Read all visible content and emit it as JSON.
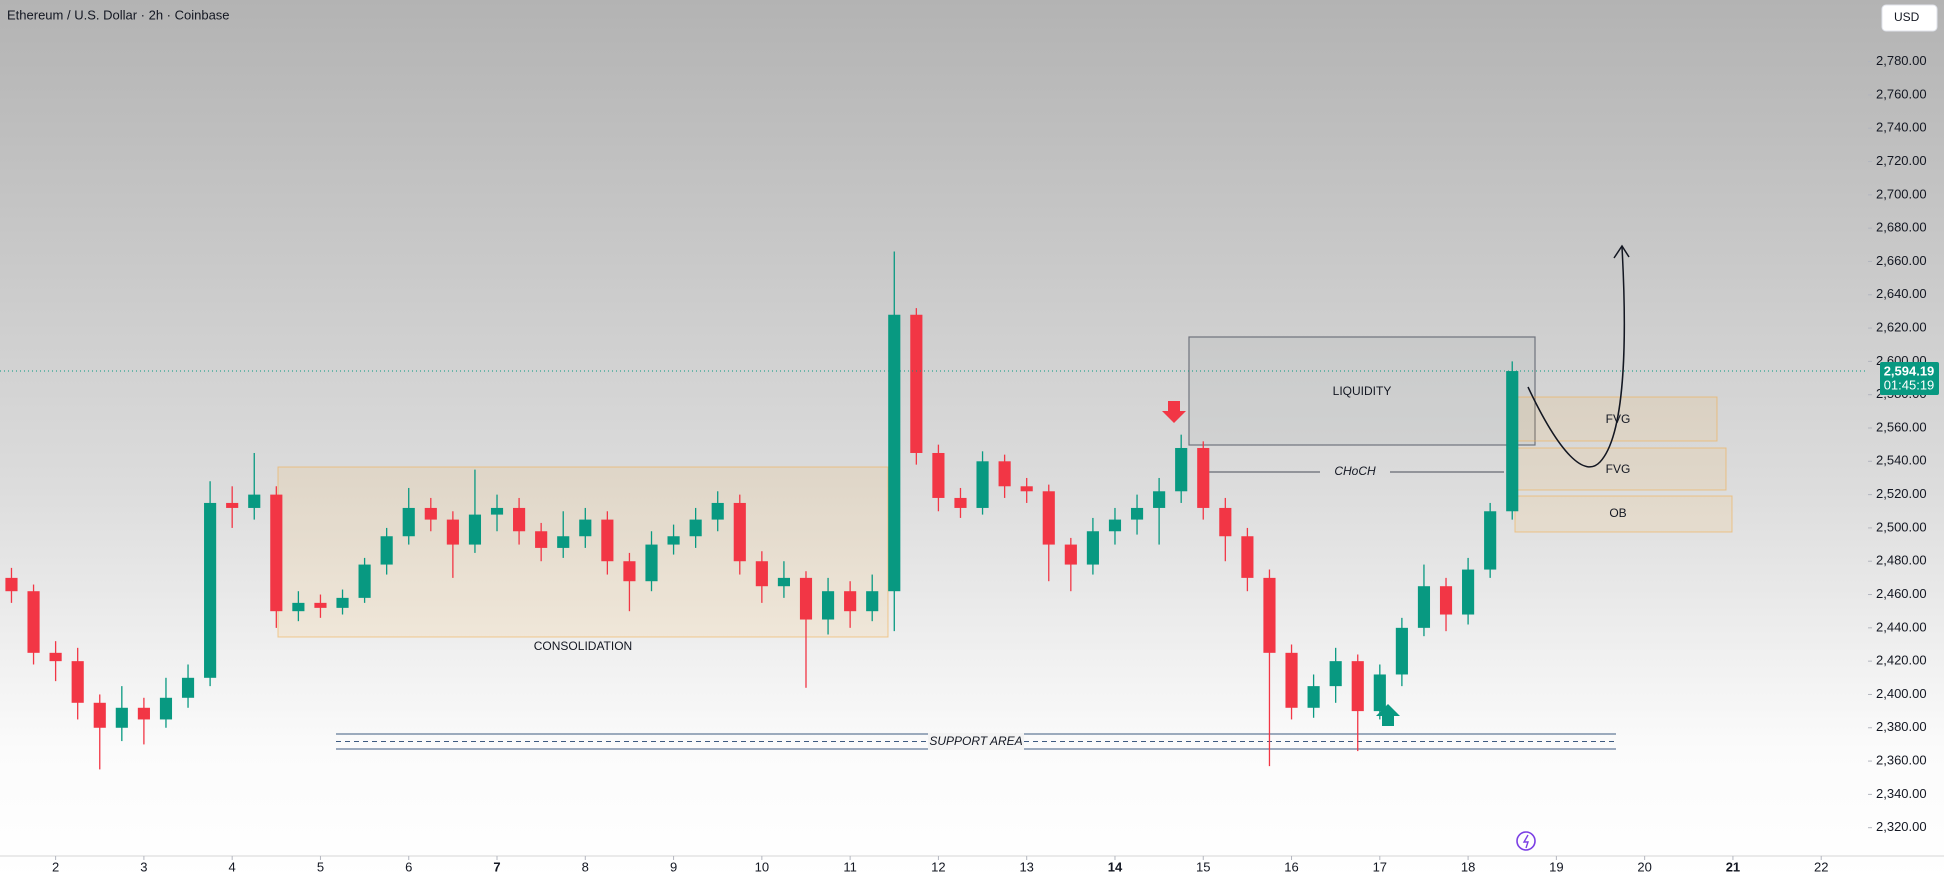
{
  "chart_data": {
    "type": "candlestick",
    "title": "Ethereum / U.S. Dollar · 2h · Coinbase",
    "currency_button": "USD",
    "up_color": "#089981",
    "down_color": "#f23645",
    "x": [
      1.5,
      1.75,
      2,
      2.25,
      2.5,
      2.75,
      3,
      3.25,
      3.5,
      3.75,
      4,
      4.25,
      4.5,
      4.75,
      5,
      5.25,
      5.5,
      5.75,
      6,
      6.25,
      6.5,
      6.75,
      7,
      7.25,
      7.5,
      7.75,
      8,
      8.25,
      8.5,
      8.75,
      9,
      9.25,
      9.5,
      9.75,
      10,
      10.25,
      10.5,
      10.75,
      11,
      11.25,
      11.5,
      11.75,
      12,
      12.25,
      12.5,
      12.75,
      13,
      13.25,
      13.5,
      13.75,
      14,
      14.25,
      14.5,
      14.75,
      15,
      15.25,
      15.5,
      15.75,
      16,
      16.25,
      16.5,
      16.75,
      17,
      17.25,
      17.5,
      17.75,
      18,
      18.25,
      18.5
    ],
    "open": [
      2470,
      2462,
      2425,
      2420,
      2395,
      2380,
      2392,
      2385,
      2398,
      2410,
      2515,
      2512,
      2520,
      2450,
      2455,
      2452,
      2458,
      2478,
      2495,
      2512,
      2505,
      2490,
      2508,
      2512,
      2498,
      2488,
      2495,
      2505,
      2480,
      2468,
      2490,
      2495,
      2505,
      2515,
      2480,
      2465,
      2470,
      2445,
      2462,
      2450,
      2462,
      2628,
      2545,
      2518,
      2512,
      2540,
      2525,
      2522,
      2490,
      2478,
      2498,
      2505,
      2512,
      2522,
      2548,
      2512,
      2495,
      2470,
      2425,
      2392,
      2405,
      2420,
      2390,
      2412,
      2440,
      2465,
      2448,
      2475,
      2510
    ],
    "high": [
      2476,
      2466,
      2432,
      2428,
      2400,
      2405,
      2398,
      2410,
      2418,
      2528,
      2525,
      2545,
      2525,
      2462,
      2460,
      2463,
      2482,
      2500,
      2524,
      2518,
      2510,
      2535,
      2520,
      2518,
      2503,
      2510,
      2512,
      2510,
      2485,
      2498,
      2502,
      2512,
      2522,
      2520,
      2486,
      2480,
      2474,
      2470,
      2468,
      2472,
      2666,
      2632,
      2550,
      2524,
      2546,
      2544,
      2530,
      2526,
      2494,
      2506,
      2512,
      2520,
      2530,
      2556,
      2552,
      2518,
      2500,
      2475,
      2430,
      2412,
      2428,
      2424,
      2418,
      2446,
      2478,
      2470,
      2482,
      2515,
      2600
    ],
    "low": [
      2455,
      2418,
      2408,
      2385,
      2355,
      2372,
      2370,
      2380,
      2392,
      2405,
      2500,
      2505,
      2440,
      2444,
      2446,
      2448,
      2455,
      2472,
      2490,
      2498,
      2470,
      2485,
      2498,
      2490,
      2480,
      2482,
      2488,
      2472,
      2450,
      2462,
      2484,
      2488,
      2498,
      2472,
      2455,
      2458,
      2404,
      2436,
      2440,
      2444,
      2438,
      2538,
      2510,
      2506,
      2508,
      2518,
      2515,
      2468,
      2462,
      2472,
      2490,
      2496,
      2490,
      2515,
      2505,
      2480,
      2462,
      2357,
      2385,
      2386,
      2395,
      2366,
      2385,
      2405,
      2435,
      2438,
      2442,
      2470,
      2505
    ],
    "close": [
      2462,
      2425,
      2420,
      2395,
      2380,
      2392,
      2385,
      2398,
      2410,
      2515,
      2512,
      2520,
      2450,
      2455,
      2452,
      2458,
      2478,
      2495,
      2512,
      2505,
      2490,
      2508,
      2512,
      2498,
      2488,
      2495,
      2505,
      2480,
      2468,
      2490,
      2495,
      2505,
      2515,
      2480,
      2465,
      2470,
      2445,
      2462,
      2450,
      2462,
      2628,
      2545,
      2518,
      2512,
      2540,
      2525,
      2522,
      2490,
      2478,
      2498,
      2505,
      2512,
      2522,
      2548,
      2512,
      2495,
      2470,
      2425,
      2392,
      2405,
      2420,
      2390,
      2412,
      2440,
      2465,
      2448,
      2475,
      2510,
      2594.19
    ],
    "last_price": {
      "value": 2594.19,
      "label": "2,594.19"
    },
    "countdown": "01:45:19",
    "xlim": [
      1.37,
      22.53
    ],
    "xticks": [
      2,
      3,
      4,
      5,
      6,
      7,
      8,
      9,
      10,
      11,
      12,
      13,
      14,
      15,
      16,
      17,
      18,
      19,
      20,
      21,
      22
    ],
    "ylim": [
      2303,
      2817
    ],
    "yticks": [
      {
        "value": 2320,
        "label": "2,320.00"
      },
      {
        "value": 2340,
        "label": "2,340.00"
      },
      {
        "value": 2360,
        "label": "2,360.00"
      },
      {
        "value": 2380,
        "label": "2,380.00"
      },
      {
        "value": 2400,
        "label": "2,400.00"
      },
      {
        "value": 2420,
        "label": "2,420.00"
      },
      {
        "value": 2440,
        "label": "2,440.00"
      },
      {
        "value": 2460,
        "label": "2,460.00"
      },
      {
        "value": 2480,
        "label": "2,480.00"
      },
      {
        "value": 2500,
        "label": "2,500.00"
      },
      {
        "value": 2520,
        "label": "2,520.00"
      },
      {
        "value": 2540,
        "label": "2,540.00"
      },
      {
        "value": 2560,
        "label": "2,560.00"
      },
      {
        "value": 2580,
        "label": "2,580.00"
      },
      {
        "value": 2600,
        "label": "2,600.00"
      },
      {
        "value": 2620,
        "label": "2,620.00"
      },
      {
        "value": 2640,
        "label": "2,640.00"
      },
      {
        "value": 2660,
        "label": "2,660.00"
      },
      {
        "value": 2680,
        "label": "2,680.00"
      },
      {
        "value": 2700,
        "label": "2,700.00"
      },
      {
        "value": 2720,
        "label": "2,720.00"
      },
      {
        "value": 2740,
        "label": "2,740.00"
      },
      {
        "value": 2760,
        "label": "2,760.00"
      },
      {
        "value": 2780,
        "label": "2,780.00"
      }
    ],
    "annotations": {
      "consolidation": "CONSOLIDATION",
      "liquidity": "LIQUIDITY",
      "choch": "CHoCH",
      "fvg_upper": "FVG",
      "fvg_lower": "FVG",
      "order_block": "OB",
      "support": "SUPPORT AREA"
    }
  }
}
